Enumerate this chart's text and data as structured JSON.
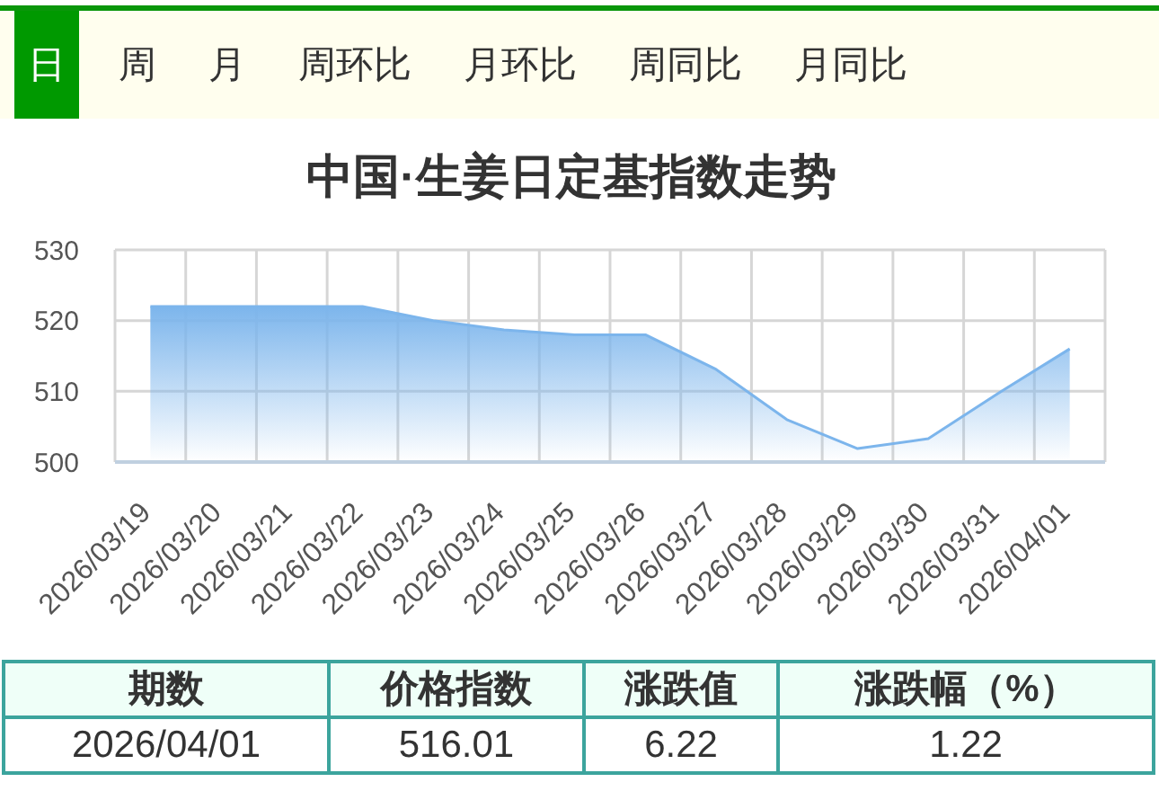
{
  "chart_data": {
    "type": "area",
    "title": "中国·生姜日定基指数走势",
    "categories": [
      "2026/03/19",
      "2026/03/20",
      "2026/03/21",
      "2026/03/22",
      "2026/03/23",
      "2026/03/24",
      "2026/03/25",
      "2026/03/26",
      "2026/03/27",
      "2026/03/28",
      "2026/03/29",
      "2026/03/30",
      "2026/03/31",
      "2026/04/01"
    ],
    "series": [
      {
        "color": "#7cb5ec",
        "values": [
          522,
          522,
          522,
          522,
          520,
          518.7,
          518,
          518,
          513.1,
          506,
          501.9,
          503.3,
          509.8,
          516
        ]
      }
    ],
    "ylim": [
      500,
      530
    ],
    "yticks": [
      500,
      510,
      520,
      530
    ],
    "grid": true,
    "legend": false,
    "annotations": [
      "日",
      "周",
      "月",
      "周环比",
      "月环比",
      "周同比",
      "月同比",
      "期数",
      "价格指数",
      "涨跌值",
      "涨跌幅（%）",
      "2026/04/01",
      "516.01",
      "6.22",
      "1.22"
    ]
  }
}
